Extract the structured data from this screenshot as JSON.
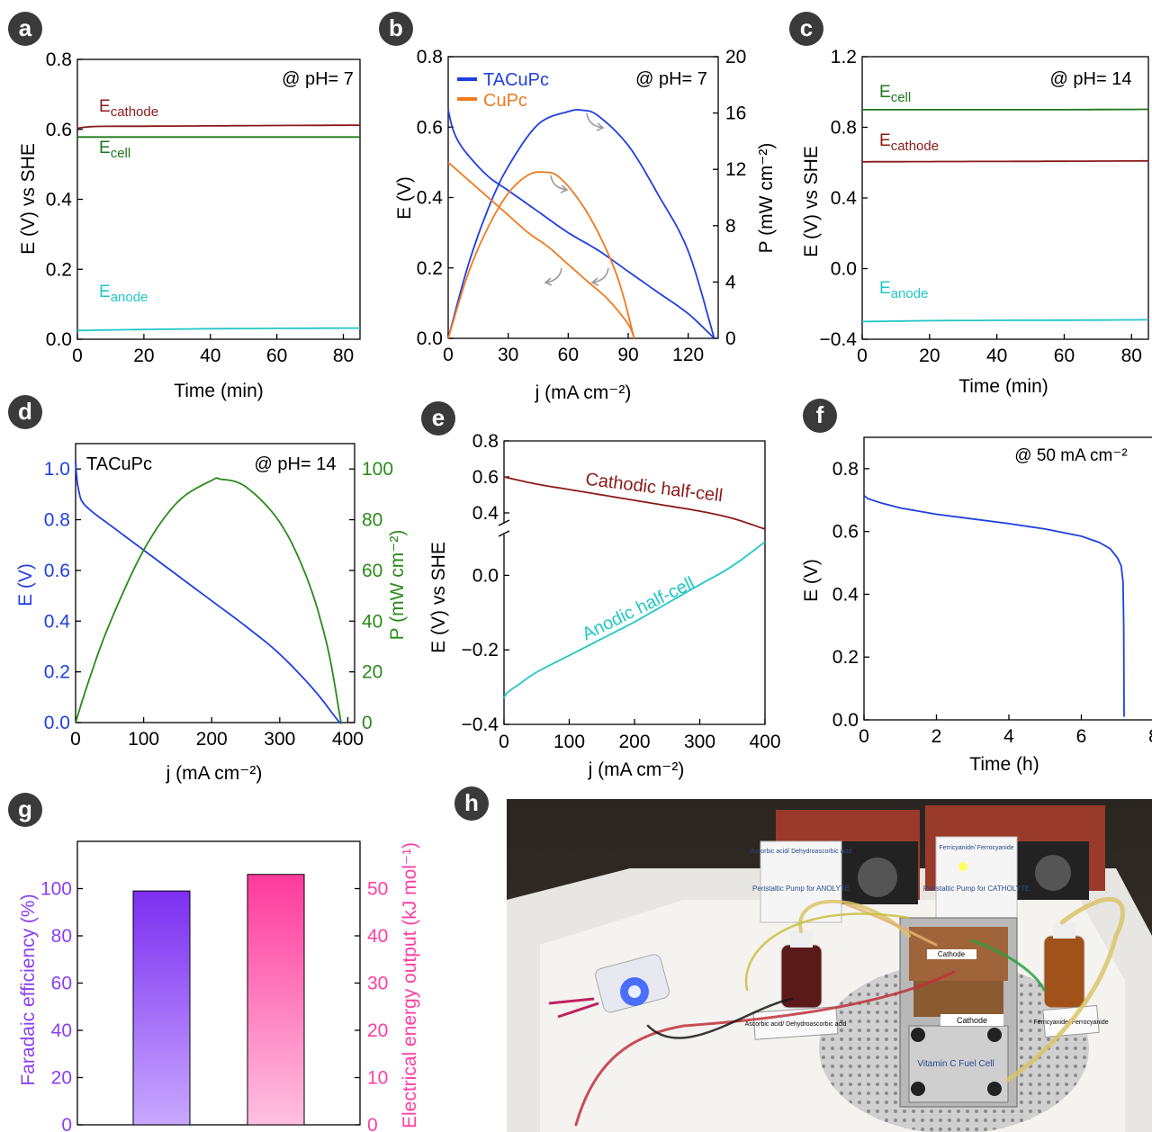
{
  "figure": {
    "panel_letters": [
      "a",
      "b",
      "c",
      "d",
      "e",
      "f",
      "g",
      "h"
    ]
  },
  "colors": {
    "cathode": "#8b1a1a",
    "cell": "#1e7a1e",
    "anode": "#22c6c6",
    "tacupc": "#1f3fe0",
    "cupc": "#f07a1f",
    "power14": "#2a8a1a",
    "fe_purple": "#8a3ff0",
    "energy_pink": "#ff3fa0",
    "arrow": "#9a9a9a"
  },
  "chart_data": [
    {
      "panel": "a",
      "type": "line",
      "annotation": "@ pH= 7",
      "xlabel": "Time (min)",
      "ylabel": "E (V) vs SHE",
      "xlim": [
        0,
        85
      ],
      "ylim": [
        0,
        0.8
      ],
      "xticks": [
        0,
        20,
        40,
        60,
        80
      ],
      "yticks": [
        0.0,
        0.2,
        0.4,
        0.6,
        0.8
      ],
      "series": [
        {
          "name": "E",
          "sub": "cathode",
          "x": [
            0,
            5,
            20,
            40,
            60,
            85
          ],
          "y": [
            0.603,
            0.608,
            0.609,
            0.61,
            0.611,
            0.612
          ]
        },
        {
          "name": "E",
          "sub": "cell",
          "x": [
            0,
            20,
            40,
            60,
            85
          ],
          "y": [
            0.578,
            0.578,
            0.578,
            0.578,
            0.578
          ]
        },
        {
          "name": "E",
          "sub": "anode",
          "x": [
            0,
            20,
            40,
            60,
            85
          ],
          "y": [
            0.025,
            0.028,
            0.03,
            0.031,
            0.032
          ]
        }
      ]
    },
    {
      "panel": "b",
      "type": "line",
      "annotation": "@ pH= 7",
      "xlabel": "j (mA cm⁻²)",
      "ylabel": "E (V)",
      "ylabel2": "P (mW cm⁻²)",
      "xlim": [
        0,
        135
      ],
      "ylim": [
        0,
        0.8
      ],
      "ylim2": [
        0,
        20
      ],
      "xticks": [
        0,
        30,
        60,
        90,
        120
      ],
      "yticks": [
        0.0,
        0.2,
        0.4,
        0.6,
        0.8
      ],
      "yticks2": [
        0,
        4,
        8,
        12,
        16,
        20
      ],
      "legend": [
        {
          "name": "TACuPc"
        },
        {
          "name": "CuPc"
        }
      ],
      "series": [
        {
          "name": "TACuPc",
          "axis": "left",
          "x": [
            0,
            2,
            5,
            10,
            20,
            30,
            45,
            60,
            75,
            90,
            105,
            120,
            133
          ],
          "y": [
            0.65,
            0.6,
            0.56,
            0.52,
            0.46,
            0.42,
            0.36,
            0.3,
            0.25,
            0.19,
            0.13,
            0.07,
            0.0
          ]
        },
        {
          "name": "TACuPc",
          "axis": "right",
          "x": [
            0,
            10,
            20,
            30,
            45,
            60,
            67,
            75,
            90,
            105,
            120,
            133
          ],
          "y": [
            0,
            5.2,
            9.2,
            12.2,
            15.2,
            16.1,
            16.2,
            15.8,
            13.7,
            10.2,
            6.2,
            0
          ]
        },
        {
          "name": "CuPc",
          "axis": "left",
          "x": [
            0,
            10,
            20,
            30,
            40,
            50,
            60,
            70,
            80,
            90,
            93
          ],
          "y": [
            0.5,
            0.45,
            0.4,
            0.35,
            0.3,
            0.26,
            0.21,
            0.16,
            0.11,
            0.04,
            0.0
          ]
        },
        {
          "name": "CuPc",
          "axis": "right",
          "x": [
            0,
            10,
            20,
            30,
            40,
            48,
            55,
            65,
            75,
            85,
            93
          ],
          "y": [
            0,
            4.6,
            7.9,
            10.3,
            11.6,
            11.8,
            11.5,
            9.9,
            7.5,
            4.2,
            0
          ]
        }
      ]
    },
    {
      "panel": "c",
      "type": "line",
      "annotation": "@ pH= 14",
      "xlabel": "Time (min)",
      "ylabel": "E (V) vs SHE",
      "xlim": [
        0,
        85
      ],
      "ylim": [
        -0.4,
        1.2
      ],
      "xticks": [
        0,
        20,
        40,
        60,
        80
      ],
      "yticks": [
        -0.4,
        0.0,
        0.4,
        0.8,
        1.2
      ],
      "series": [
        {
          "name": "E",
          "sub": "cell",
          "x": [
            0,
            20,
            40,
            60,
            85
          ],
          "y": [
            0.9,
            0.9,
            0.9,
            0.9,
            0.902
          ]
        },
        {
          "name": "E",
          "sub": "cathode",
          "x": [
            0,
            20,
            40,
            60,
            85
          ],
          "y": [
            0.605,
            0.606,
            0.607,
            0.608,
            0.61
          ]
        },
        {
          "name": "E",
          "sub": "anode",
          "x": [
            0,
            20,
            40,
            60,
            85
          ],
          "y": [
            -0.3,
            -0.295,
            -0.293,
            -0.292,
            -0.29
          ]
        }
      ]
    },
    {
      "panel": "d",
      "type": "line",
      "annotation": "@ pH= 14",
      "label": "TACuPc",
      "xlabel": "j (mA cm⁻²)",
      "ylabel": "E (V)",
      "ylabel2": "P (mW cm⁻²)",
      "xlim": [
        0,
        410
      ],
      "ylim": [
        0,
        1.1
      ],
      "ylim2": [
        0,
        110
      ],
      "xticks": [
        0,
        100,
        200,
        300,
        400
      ],
      "yticks": [
        0.0,
        0.2,
        0.4,
        0.6,
        0.8,
        1.0
      ],
      "yticks2": [
        0,
        20,
        40,
        60,
        80,
        100
      ],
      "series": [
        {
          "name": "E",
          "axis": "left",
          "x": [
            0,
            2,
            5,
            10,
            25,
            50,
            100,
            150,
            200,
            250,
            300,
            350,
            385,
            390
          ],
          "y": [
            1.03,
            0.96,
            0.91,
            0.87,
            0.83,
            0.78,
            0.68,
            0.58,
            0.48,
            0.38,
            0.27,
            0.13,
            0.01,
            0.0
          ]
        },
        {
          "name": "P",
          "axis": "right",
          "x": [
            0,
            20,
            50,
            100,
            150,
            200,
            213,
            250,
            300,
            340,
            370,
            390
          ],
          "y": [
            0,
            17,
            39,
            68,
            87,
            95.5,
            96,
            93,
            79,
            57,
            30,
            0
          ]
        }
      ]
    },
    {
      "panel": "e",
      "type": "line",
      "xlabel": "j (mA cm⁻²)",
      "ylabel": "E (V) vs SHE",
      "xlim": [
        0,
        400
      ],
      "ylim_lower": [
        -0.4,
        0.1
      ],
      "ylim_upper": [
        0.3,
        0.8
      ],
      "xticks": [
        0,
        100,
        200,
        300,
        400
      ],
      "yticks_lower": [
        -0.4,
        -0.2,
        0.0
      ],
      "yticks_upper": [
        0.4,
        0.6,
        0.8
      ],
      "annotations": [
        "Cathodic half-cell",
        "Anodic half-cell"
      ],
      "series": [
        {
          "name": "Cathodic half-cell",
          "x": [
            0,
            50,
            100,
            150,
            200,
            250,
            300,
            350,
            400
          ],
          "y": [
            0.6,
            0.56,
            0.53,
            0.5,
            0.47,
            0.44,
            0.41,
            0.37,
            0.31
          ]
        },
        {
          "name": "Anodic half-cell",
          "x": [
            0,
            5,
            25,
            50,
            100,
            150,
            200,
            250,
            300,
            350,
            400
          ],
          "y": [
            -0.33,
            -0.315,
            -0.29,
            -0.26,
            -0.215,
            -0.17,
            -0.125,
            -0.075,
            -0.025,
            0.025,
            0.09
          ]
        }
      ]
    },
    {
      "panel": "f",
      "type": "line",
      "annotation": "@ 50 mA cm⁻²",
      "xlabel": "Time (h)",
      "ylabel": "E (V)",
      "xlim": [
        0,
        8
      ],
      "ylim": [
        0,
        0.9
      ],
      "xticks": [
        0,
        2,
        4,
        6,
        8
      ],
      "yticks": [
        0.0,
        0.2,
        0.4,
        0.6,
        0.8
      ],
      "series": [
        {
          "name": "E",
          "x": [
            0,
            0.1,
            0.5,
            1,
            2,
            3,
            4,
            5,
            6,
            6.5,
            6.8,
            7.0,
            7.1,
            7.15,
            7.17,
            7.18
          ],
          "y": [
            0.715,
            0.705,
            0.69,
            0.675,
            0.655,
            0.64,
            0.625,
            0.608,
            0.585,
            0.565,
            0.545,
            0.515,
            0.49,
            0.44,
            0.3,
            0.01
          ]
        }
      ]
    },
    {
      "panel": "g",
      "type": "bar",
      "ylabel": "Faradaic efficiency (%)",
      "ylabel2": "Electrical energy output (kJ mol⁻¹)",
      "ylim": [
        0,
        120
      ],
      "ylim2": [
        0,
        60
      ],
      "yticks": [
        0,
        20,
        40,
        60,
        80,
        100
      ],
      "yticks2": [
        0,
        10,
        20,
        30,
        40,
        50
      ],
      "values": [
        99,
        53
      ],
      "axes": [
        "left",
        "right"
      ]
    }
  ],
  "photo": {
    "labels": {
      "pump_anolyte": "Peristaltic Pump for ANOLYTE",
      "pump_catholyte": "Peristaltic Pump for CATHOLYTE",
      "ascorbic_top": "Ascorbic acid/ Dehydroascorbic acid",
      "ferri_top": "Ferricyanide/ Ferrocyanide",
      "ascorbic_tag": "Ascorbic acid/ Dehydroascorbic acid",
      "ferri_tag": "Ferricyanide/ Ferrocyanide",
      "cathode_1": "Cathode",
      "cathode_2": "Cathode",
      "fuel_cell": "Vitamin C Fuel Cell"
    }
  }
}
